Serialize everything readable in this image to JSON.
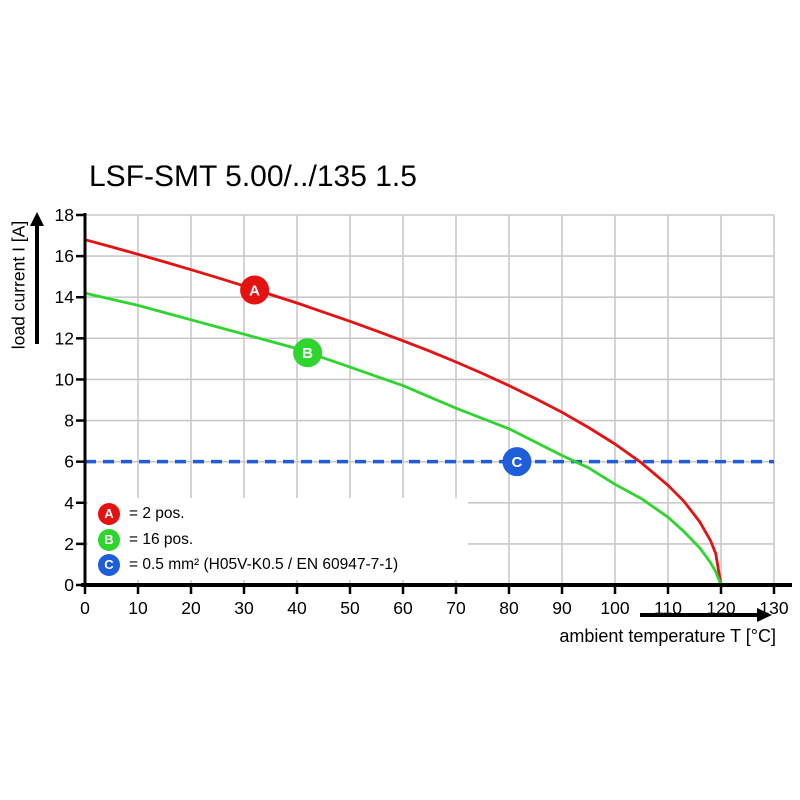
{
  "chart_data": {
    "type": "line",
    "title": "LSF-SMT 5.00/../135 1.5",
    "xlabel": "ambient temperature T [°C]",
    "ylabel": "load current I [A]",
    "xlim": [
      0,
      130
    ],
    "ylim": [
      0,
      18
    ],
    "x_ticks": [
      0,
      10,
      20,
      30,
      40,
      50,
      60,
      70,
      80,
      90,
      100,
      110,
      120,
      130
    ],
    "y_ticks": [
      0,
      2,
      4,
      6,
      8,
      10,
      12,
      14,
      16,
      18
    ],
    "grid": true,
    "grid_color": "#c9c9c9",
    "axis_color": "#000000",
    "reference_line": {
      "y": 6,
      "style": "dashed",
      "color": "#1f5edb"
    },
    "series": [
      {
        "name": "A",
        "color": "#e61111",
        "marker": {
          "letter": "A",
          "x": 32,
          "y": 14.35
        },
        "points": [
          [
            0,
            16.8
          ],
          [
            5,
            16.45
          ],
          [
            10,
            16.09
          ],
          [
            15,
            15.72
          ],
          [
            20,
            15.34
          ],
          [
            25,
            14.95
          ],
          [
            30,
            14.55
          ],
          [
            35,
            14.13
          ],
          [
            40,
            13.72
          ],
          [
            45,
            13.27
          ],
          [
            50,
            12.83
          ],
          [
            55,
            12.36
          ],
          [
            60,
            11.88
          ],
          [
            65,
            11.38
          ],
          [
            70,
            10.85
          ],
          [
            75,
            10.29
          ],
          [
            80,
            9.7
          ],
          [
            85,
            9.07
          ],
          [
            90,
            8.4
          ],
          [
            95,
            7.66
          ],
          [
            100,
            6.86
          ],
          [
            105,
            5.94
          ],
          [
            110,
            4.85
          ],
          [
            113,
            4.07
          ],
          [
            116,
            3.07
          ],
          [
            118,
            2.17
          ],
          [
            119,
            1.53
          ],
          [
            120,
            0
          ]
        ]
      },
      {
        "name": "B",
        "color": "#2ed52e",
        "marker": {
          "letter": "B",
          "x": 42,
          "y": 11.3
        },
        "points": [
          [
            0,
            14.2
          ],
          [
            5,
            13.9
          ],
          [
            10,
            13.6
          ],
          [
            15,
            13.25
          ],
          [
            20,
            12.9
          ],
          [
            25,
            12.55
          ],
          [
            30,
            12.2
          ],
          [
            35,
            11.85
          ],
          [
            40,
            11.5
          ],
          [
            45,
            11.05
          ],
          [
            50,
            10.6
          ],
          [
            55,
            10.15
          ],
          [
            60,
            9.7
          ],
          [
            65,
            9.15
          ],
          [
            70,
            8.6
          ],
          [
            75,
            8.1
          ],
          [
            80,
            7.6
          ],
          [
            85,
            6.95
          ],
          [
            90,
            6.3
          ],
          [
            95,
            5.7
          ],
          [
            100,
            4.9
          ],
          [
            105,
            4.2
          ],
          [
            110,
            3.3
          ],
          [
            113,
            2.6
          ],
          [
            116,
            1.8
          ],
          [
            118,
            1.1
          ],
          [
            119,
            0.65
          ],
          [
            120,
            0
          ]
        ]
      }
    ],
    "point_markers": [
      {
        "letter": "C",
        "x": 81.5,
        "y": 6,
        "color": "#1f5edb"
      }
    ],
    "legend": {
      "position": "inside-bottom-left",
      "items": [
        {
          "letter": "A",
          "color": "#e61111",
          "label": "= 2 pos."
        },
        {
          "letter": "B",
          "color": "#2ed52e",
          "label": "= 16 pos."
        },
        {
          "letter": "C",
          "color": "#1f5edb",
          "label": "= 0.5 mm² (H05V-K0.5 / EN 60947-7-1)"
        }
      ]
    }
  }
}
